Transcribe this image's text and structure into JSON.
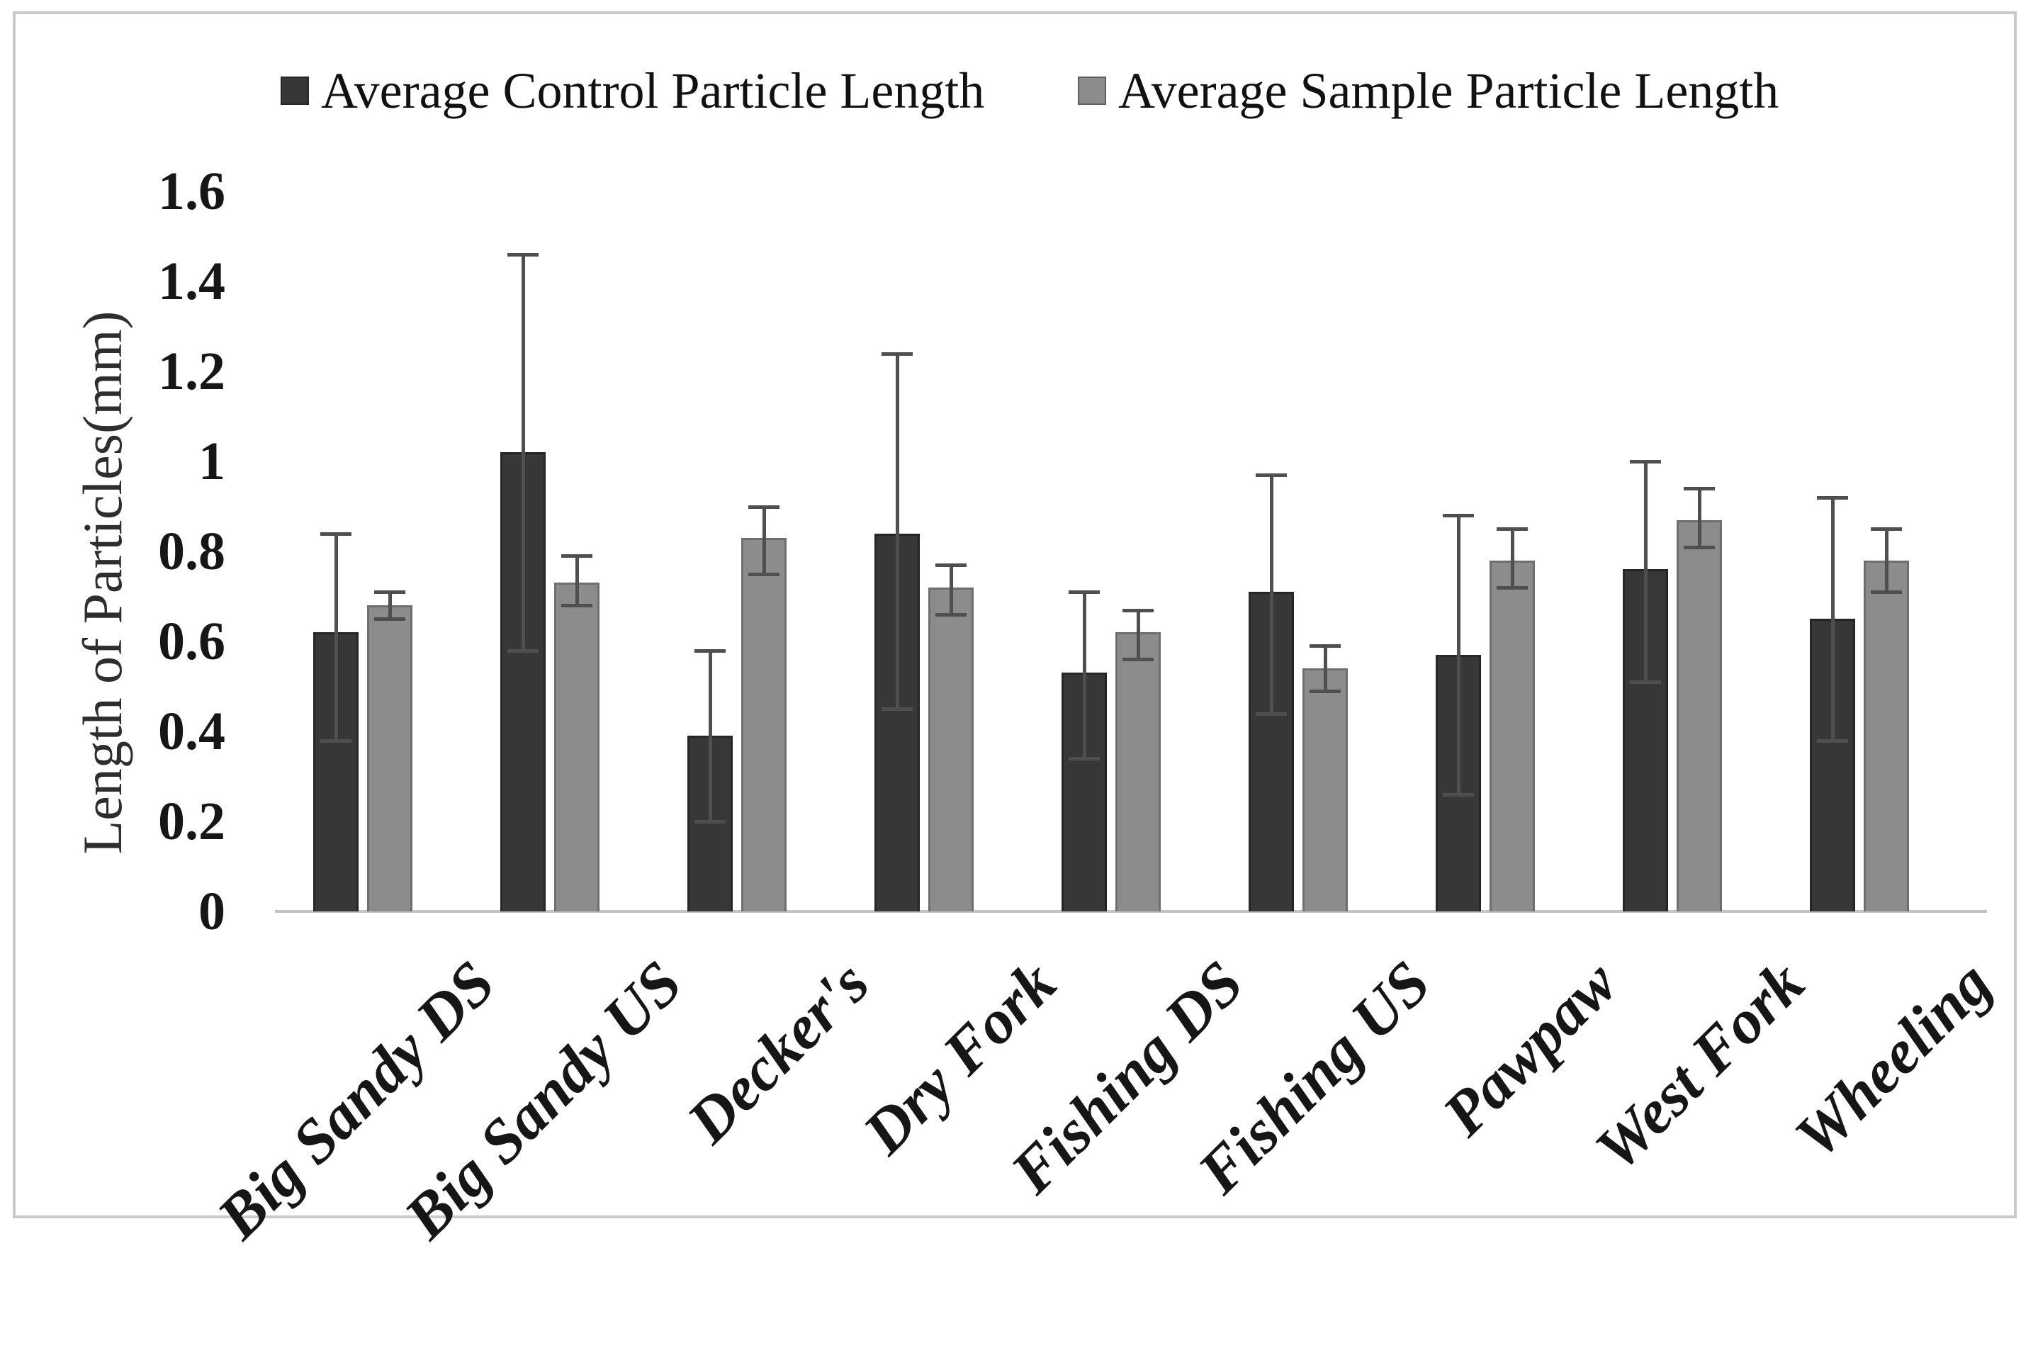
{
  "colors": {
    "control_fill": "#373737",
    "control_border": "#262626",
    "sample_fill": "#8c8c8c",
    "sample_border": "#6e6e6e",
    "error_bar": "#4f4f4f",
    "axis_line": "#c4c4c4",
    "frame_border": "#c9c9c9"
  },
  "chart_data": {
    "type": "bar",
    "title": "",
    "categories": [
      "Big Sandy DS",
      "Big Sandy US",
      "Decker's",
      "Dry Fork",
      "Fishing DS",
      "Fishing US",
      "Pawpaw",
      "West Fork",
      "Wheeling"
    ],
    "series": [
      {
        "name": "Average Control Particle Length",
        "color_hex": "#373737",
        "border_hex": "#262626",
        "values": [
          0.62,
          1.02,
          0.39,
          0.84,
          0.53,
          0.71,
          0.57,
          0.76,
          0.65
        ],
        "error_low": [
          0.38,
          0.58,
          0.2,
          0.45,
          0.34,
          0.44,
          0.26,
          0.51,
          0.38
        ],
        "error_high": [
          0.84,
          1.46,
          0.58,
          1.24,
          0.71,
          0.97,
          0.88,
          1.0,
          0.92
        ]
      },
      {
        "name": "Average Sample Particle Length",
        "color_hex": "#8c8c8c",
        "border_hex": "#6e6e6e",
        "values": [
          0.68,
          0.73,
          0.83,
          0.72,
          0.62,
          0.54,
          0.78,
          0.87,
          0.78
        ],
        "error_low": [
          0.65,
          0.68,
          0.75,
          0.66,
          0.56,
          0.49,
          0.72,
          0.81,
          0.71
        ],
        "error_high": [
          0.71,
          0.79,
          0.9,
          0.77,
          0.67,
          0.59,
          0.85,
          0.94,
          0.85
        ]
      }
    ],
    "ylabel": "Length of Particles(mm)",
    "ylim": [
      0,
      1.6
    ],
    "y_tick_values": [
      0,
      0.2,
      0.4,
      0.6,
      0.8,
      1,
      1.2,
      1.4,
      1.6
    ],
    "y_tick_labels": [
      "0",
      "0.2",
      "0.4",
      "0.6",
      "0.8",
      "1",
      "1.2",
      "1.4",
      "1.6"
    ],
    "grid": false,
    "legend_position": "top",
    "error_bars": true
  }
}
